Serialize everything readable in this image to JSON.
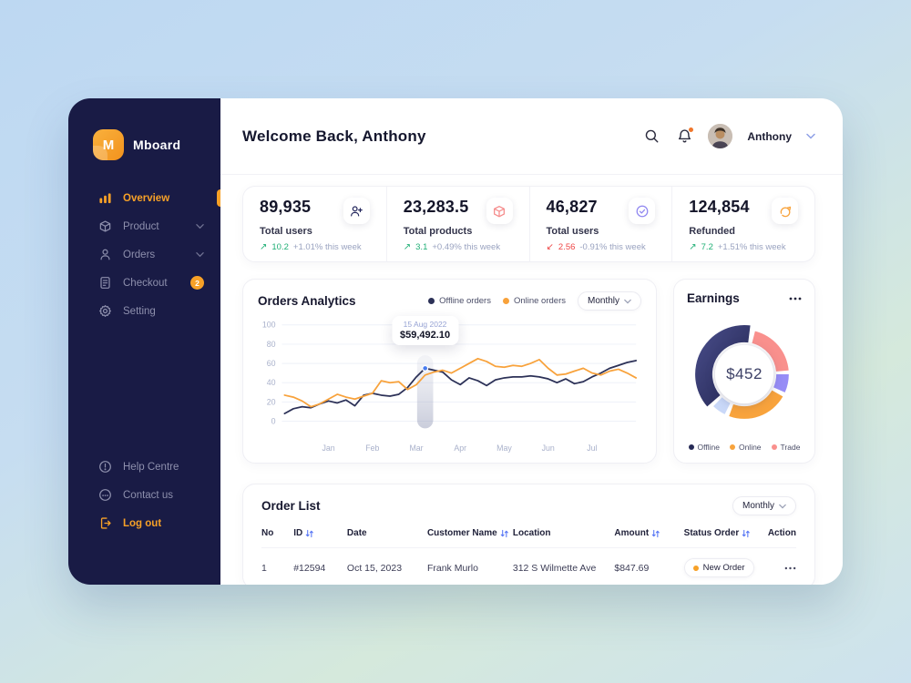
{
  "colors": {
    "accent_orange": "#f7a127",
    "sidebar_navy": "#191b45",
    "line_offline": "#2c3157",
    "line_online": "#f8a23b",
    "green": "#1faf75",
    "red": "#ee4545"
  },
  "sidebar": {
    "brand": "Mboard",
    "logo_letter": "M",
    "items": [
      {
        "label": "Overview",
        "icon": "bar-chart-icon",
        "active": true
      },
      {
        "label": "Product",
        "icon": "box-icon",
        "expandable": true
      },
      {
        "label": "Orders",
        "icon": "user-icon",
        "expandable": true
      },
      {
        "label": "Checkout",
        "icon": "receipt-icon",
        "badge": "2"
      },
      {
        "label": "Setting",
        "icon": "gear-icon"
      }
    ],
    "support_items": [
      {
        "label": "Help Centre",
        "icon": "help-circle-icon"
      },
      {
        "label": "Contact us",
        "icon": "chat-icon"
      }
    ],
    "logout_label": "Log out"
  },
  "header": {
    "title": "Welcome Back, Anthony",
    "user_name": "Anthony",
    "icons": [
      "search-icon",
      "bell-icon"
    ]
  },
  "stats": [
    {
      "value": "89,935",
      "label": "Total users",
      "trend_arrow": "↗",
      "trend_value": "10.2",
      "trend_pct": "+1.01% this week",
      "trend_dir": "up",
      "icon": "user-add-icon",
      "icon_color": "#23265c"
    },
    {
      "value": "23,283.5",
      "label": "Total products",
      "trend_arrow": "↗",
      "trend_value": "3.1",
      "trend_pct": "+0.49% this week",
      "trend_dir": "up",
      "icon": "product-box-icon",
      "icon_color": "#f58a8a"
    },
    {
      "value": "46,827",
      "label": "Total users",
      "trend_arrow": "↙",
      "trend_value": "2.56",
      "trend_pct": "-0.91% this week",
      "trend_dir": "down",
      "icon": "check-circle-icon",
      "icon_color": "#8f86f0"
    },
    {
      "value": "124,854",
      "label": "Refunded",
      "trend_arrow": "↗",
      "trend_value": "7.2",
      "trend_pct": "+1.51% this week",
      "trend_dir": "up",
      "icon": "redo-arrow-icon",
      "icon_color": "#f8a33c"
    }
  ],
  "analytics": {
    "filter_label": "Monthly"
  },
  "order_list": {
    "title": "Order List",
    "filter_label": "Monthly",
    "columns": [
      {
        "label": "No",
        "sortable": false
      },
      {
        "label": "ID",
        "sortable": true
      },
      {
        "label": "Date",
        "sortable": false
      },
      {
        "label": "Customer Name",
        "sortable": true
      },
      {
        "label": "Location",
        "sortable": false
      },
      {
        "label": "Amount",
        "sortable": true
      },
      {
        "label": "Status Order",
        "sortable": true
      },
      {
        "label": "Action",
        "sortable": false
      }
    ],
    "rows": [
      {
        "no": "1",
        "id": "#12594",
        "date": "Oct 15, 2023",
        "customer": "Frank Murlo",
        "location": "312 S Wilmette Ave",
        "amount": "$847.69",
        "status": "New Order",
        "status_color": "#f7a127"
      }
    ]
  },
  "chart_data": [
    {
      "type": "line",
      "title": "Orders Analytics",
      "x_labels": [
        "Jan",
        "Feb",
        "Mar",
        "Apr",
        "May",
        "Jun",
        "Jul"
      ],
      "y_ticks": [
        0,
        20,
        40,
        60,
        80,
        100
      ],
      "ylim": [
        0,
        100
      ],
      "grid": true,
      "legend_position": "top-right",
      "series": [
        {
          "name": "Offline orders",
          "color": "#2c3157",
          "values": [
            8,
            13,
            15,
            14,
            18,
            21,
            19,
            22,
            16,
            27,
            29,
            27,
            26,
            28,
            35,
            46,
            55,
            53,
            51,
            43,
            38,
            45,
            42,
            37,
            43,
            45,
            46,
            46,
            47,
            46,
            44,
            40,
            44,
            39,
            41,
            46,
            50,
            55,
            58,
            61,
            63
          ]
        },
        {
          "name": "Online orders",
          "color": "#f8a23b",
          "values": [
            27,
            25,
            21,
            15,
            18,
            23,
            28,
            25,
            23,
            26,
            29,
            42,
            40,
            41,
            33,
            38,
            48,
            51,
            53,
            50,
            55,
            60,
            65,
            62,
            57,
            56,
            58,
            57,
            60,
            64,
            55,
            48,
            49,
            52,
            55,
            50,
            48,
            52,
            54,
            50,
            45
          ]
        }
      ],
      "tooltip": {
        "date": "15 Aug 2022",
        "value": "$59,492.10",
        "x_fraction": 0.4,
        "point_value": 55,
        "series": "Offline orders"
      }
    },
    {
      "type": "donut",
      "title": "Earnings",
      "center_label": "$452",
      "segments": [
        {
          "name": "Offline",
          "color": "#2d3166",
          "start": 229,
          "end": 367,
          "emph": true
        },
        {
          "name": "Trade",
          "color": "#f9908d",
          "start": 14,
          "end": 85
        },
        {
          "name": "",
          "color": "#978df6",
          "start": 90,
          "end": 114
        },
        {
          "name": "Online",
          "color": "#f8a33c",
          "start": 120,
          "end": 200
        },
        {
          "name": "",
          "color": "#c9d8f8",
          "start": 206,
          "end": 224
        }
      ],
      "legend": [
        {
          "label": "Offline",
          "color": "#262a56"
        },
        {
          "label": "Online",
          "color": "#f8a33c"
        },
        {
          "label": "Trade",
          "color": "#f9908d"
        }
      ]
    }
  ]
}
